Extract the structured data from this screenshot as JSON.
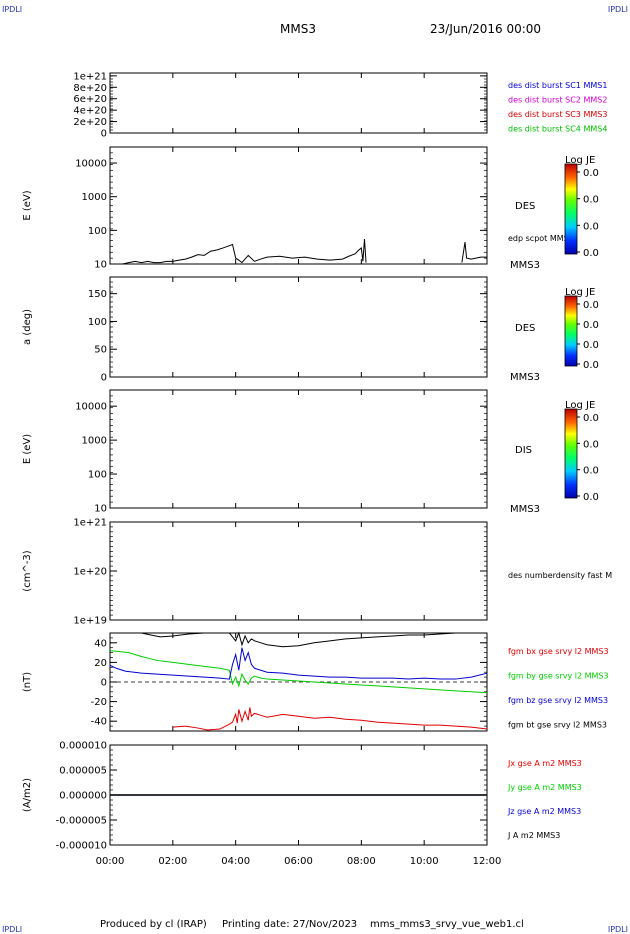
{
  "header": {
    "corner_tl": "IPDLI",
    "corner_tr": "IPDLI",
    "corner_bl": "IPDLI",
    "corner_br": "IPDLI",
    "spacecraft": "MMS3",
    "date": "23/Jun/2016 00:00"
  },
  "footer": {
    "produced": "Produced by cl (IRAP)",
    "printing": "Printing date: 27/Nov/2023",
    "filename": "mms_mms3_srvy_vue_web1.cl"
  },
  "colors": {
    "mms1": "#0000cc",
    "mms2": "#cc00cc",
    "mms3": "#cc0000",
    "mms4": "#00bb00",
    "bx": "#dd0000",
    "by": "#00cc00",
    "bz": "#0000cc",
    "bt": "#000000"
  },
  "colorbar": {
    "title": "Log JE",
    "ticks": [
      "0.0",
      "0.0",
      "0.0",
      "0.0"
    ]
  },
  "chart_data": [
    {
      "type": "line",
      "ylabel": "",
      "yticks": [
        "1e+21",
        "8e+20",
        "6e+20",
        "4e+20",
        "2e+20",
        "0"
      ],
      "ylim": [
        0,
        1.05e+21
      ],
      "series": [
        {
          "name": "des dist burst SC1 MMS1",
          "values": []
        },
        {
          "name": "des dist burst SC2 MMS2",
          "values": []
        },
        {
          "name": "des dist burst SC3 MMS3",
          "values": []
        },
        {
          "name": "des dist burst SC4 MMS4",
          "values": []
        }
      ],
      "dashed_zero": true
    },
    {
      "type": "heatmap",
      "ylabel": "E (eV)",
      "scale": "log",
      "yticks": [
        "10000",
        "1000",
        "100",
        "10"
      ],
      "ylim": [
        10,
        30000
      ],
      "right_label": "DES",
      "sc_label": "MMS3",
      "overlay_name": "edp scpot MMS3",
      "overlay": {
        "x_hours": [
          0.4,
          0.6,
          0.8,
          1.0,
          1.2,
          1.4,
          1.6,
          1.8,
          2.0,
          2.2,
          2.4,
          2.6,
          2.8,
          3.0,
          3.2,
          3.4,
          3.6,
          3.8,
          3.9,
          4.0,
          4.1,
          4.2,
          4.4,
          4.6,
          4.8,
          5.0,
          5.4,
          5.8,
          6.2,
          6.6,
          7.0,
          7.4,
          7.6,
          7.8,
          7.9,
          8.0,
          8.05,
          8.1,
          8.15,
          11.2,
          11.3,
          11.35,
          11.5,
          11.8,
          12.0
        ],
        "y_eV": [
          10,
          11,
          12,
          11,
          12,
          11,
          11,
          12,
          12,
          13,
          14,
          16,
          19,
          18,
          24,
          26,
          30,
          35,
          38,
          15,
          13,
          11,
          18,
          12,
          14,
          16,
          17,
          15,
          16,
          14,
          13,
          14,
          17,
          20,
          25,
          30,
          12,
          55,
          11,
          11,
          45,
          15,
          14,
          16,
          16
        ]
      }
    },
    {
      "type": "heatmap",
      "ylabel": "a (deg)",
      "yticks": [
        "150",
        "100",
        "50",
        "0"
      ],
      "ylim": [
        0,
        180
      ],
      "right_label": "DES",
      "sc_label": "MMS3"
    },
    {
      "type": "heatmap",
      "ylabel": "E (eV)",
      "scale": "log",
      "yticks": [
        "10000",
        "1000",
        "100",
        "10"
      ],
      "ylim": [
        10,
        30000
      ],
      "right_label": "DIS",
      "sc_label": "MMS3"
    },
    {
      "type": "line",
      "ylabel": "(cm^-3)",
      "scale": "log",
      "yticks": [
        "1e+21",
        "1e+20",
        "1e+19"
      ],
      "ylim": [
        1e+19,
        1e+21
      ],
      "series": [
        {
          "name": "des numberdensity fast M",
          "values": []
        }
      ]
    },
    {
      "type": "line",
      "ylabel": "(nT)",
      "yticks": [
        "40",
        "20",
        "0",
        "-20",
        "-40"
      ],
      "ylim": [
        -50,
        50
      ],
      "dashed_zero": true,
      "series": [
        {
          "name": "fgm bx gse srvy l2 MMS3",
          "x": [
            2.0,
            2.4,
            2.8,
            3.1,
            3.5,
            3.8,
            3.9,
            4.0,
            4.05,
            4.1,
            4.2,
            4.3,
            4.4,
            4.45,
            4.5,
            4.6,
            4.8,
            5.0,
            5.5,
            6.0,
            6.5,
            7.0,
            7.5,
            8.0,
            8.5,
            9.0,
            9.5,
            10.0,
            10.5,
            11.0,
            11.5,
            12.0
          ],
          "y": [
            -46,
            -45,
            -47,
            -49,
            -48,
            -43,
            -41,
            -33,
            -42,
            -28,
            -40,
            -30,
            -39,
            -26,
            -35,
            -32,
            -34,
            -36,
            -33,
            -35,
            -37,
            -36,
            -38,
            -39,
            -41,
            -42,
            -43,
            -44,
            -44,
            -45,
            -46,
            -48
          ]
        },
        {
          "name": "fgm by gse srvy l2 MMS3",
          "x": [
            0.0,
            0.3,
            0.6,
            1.0,
            1.5,
            2.0,
            2.5,
            3.0,
            3.5,
            3.8,
            3.9,
            4.0,
            4.1,
            4.2,
            4.3,
            4.4,
            4.5,
            4.6,
            4.8,
            5.0,
            5.5,
            6.0,
            6.5,
            7.0,
            7.5,
            8.0,
            8.5,
            9.0,
            9.5,
            10.0,
            10.5,
            11.0,
            11.5,
            12.0
          ],
          "y": [
            32,
            31,
            30,
            26,
            22,
            20,
            18,
            16,
            14,
            12,
            -2,
            5,
            -4,
            8,
            2,
            -2,
            4,
            6,
            4,
            3,
            2,
            1,
            0,
            -1,
            -2,
            -3,
            -4,
            -5,
            -6,
            -7,
            -8,
            -9,
            -10,
            -11
          ]
        },
        {
          "name": "fgm bz gse srvy l2 MMS3",
          "x": [
            0.0,
            0.2,
            0.5,
            1.0,
            1.5,
            2.0,
            2.5,
            3.0,
            3.5,
            3.8,
            3.9,
            4.0,
            4.1,
            4.2,
            4.3,
            4.4,
            4.5,
            4.6,
            4.8,
            5.0,
            5.5,
            6.0,
            6.5,
            7.0,
            7.5,
            8.0,
            8.5,
            9.0,
            9.5,
            10.0,
            10.5,
            11.0,
            11.5,
            12.0
          ],
          "y": [
            17,
            14,
            11,
            9,
            8,
            7,
            6,
            5,
            4,
            3,
            18,
            28,
            12,
            35,
            22,
            30,
            18,
            14,
            12,
            10,
            9,
            7,
            6,
            5,
            5,
            4,
            4,
            4,
            3,
            4,
            3,
            3,
            5,
            9
          ]
        },
        {
          "name": "fgm bt gse srvy l2 MMS3",
          "x": [
            1.0,
            1.3,
            1.6,
            2.0,
            2.5,
            3.0,
            3.5,
            3.8,
            3.9,
            4.0,
            4.1,
            4.2,
            4.3,
            4.4,
            4.5,
            4.6,
            4.8,
            5.0,
            5.5,
            6.0,
            6.5,
            7.0,
            7.5,
            8.0,
            8.5,
            9.0,
            9.5,
            10.0,
            10.5,
            11.0,
            11.5,
            12.0
          ],
          "y": [
            51,
            48,
            46,
            47,
            49,
            50,
            50,
            51,
            46,
            42,
            50,
            38,
            47,
            40,
            44,
            42,
            40,
            38,
            36,
            37,
            40,
            42,
            44,
            45,
            46,
            47,
            48,
            48,
            49,
            50,
            50,
            51
          ]
        }
      ]
    },
    {
      "type": "line",
      "ylabel": "(A/m2)",
      "yticks": [
        "0.000010",
        "0.000005",
        "0.000000",
        "-0.000005",
        "-0.000010"
      ],
      "ylim": [
        -1e-05,
        1e-05
      ],
      "series": [
        {
          "name": "Jx gse A m2 MMS3",
          "x": [
            0,
            12
          ],
          "y": [
            0,
            0
          ]
        },
        {
          "name": "Jy gse A m2 MMS3",
          "x": [
            0,
            12
          ],
          "y": [
            0,
            0
          ]
        },
        {
          "name": "Jz gse A m2 MMS3",
          "x": [
            0,
            12
          ],
          "y": [
            0,
            0
          ]
        },
        {
          "name": "J A m2 MMS3",
          "x": [
            0,
            12
          ],
          "y": [
            0,
            0
          ]
        }
      ]
    }
  ],
  "xaxis": {
    "ticks": [
      "00:00",
      "02:00",
      "04:00",
      "06:00",
      "08:00",
      "10:00",
      "12:00"
    ],
    "xlim": [
      0,
      12
    ]
  }
}
